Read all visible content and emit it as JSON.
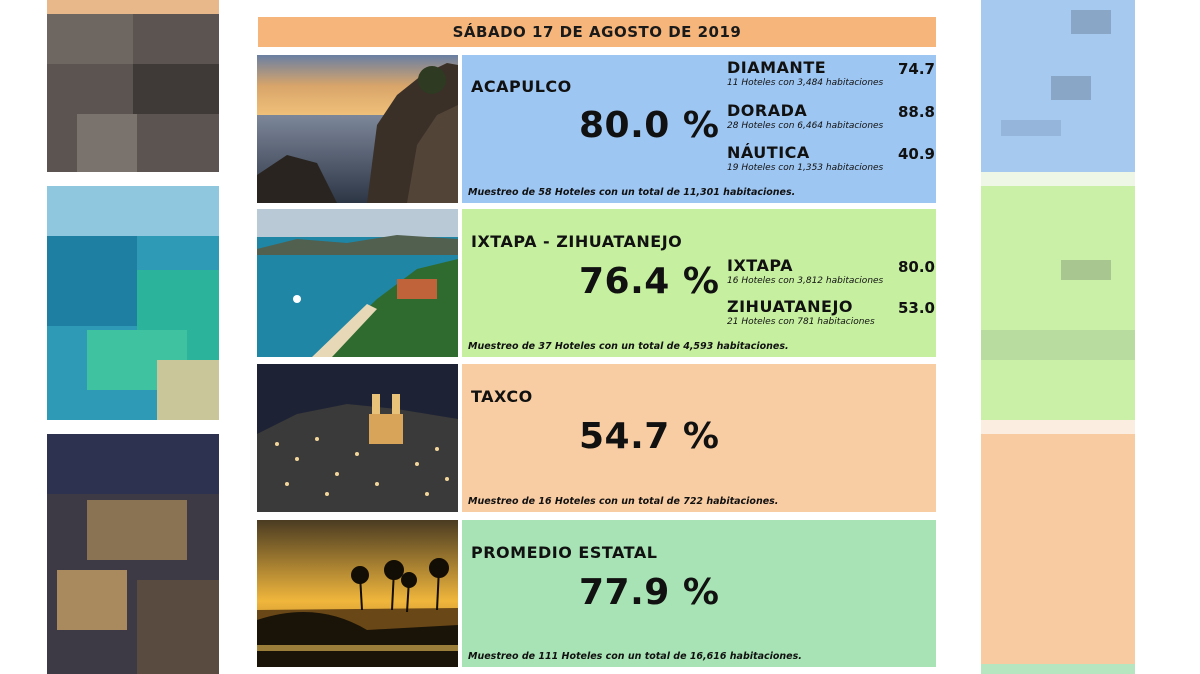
{
  "header": {
    "date": "SÁBADO 17 DE AGOSTO DE 2019"
  },
  "colors": {
    "header": "#f6b57a",
    "acapulco": "#9ec6f2",
    "ixtapa": "#c6f0a0",
    "taxco": "#f9cda3",
    "promedio": "#a7e3b4"
  },
  "acapulco": {
    "name": "ACAPULCO",
    "percent": "80.0 %",
    "sample": "Muestreo de 58 Hoteles con un total de 11,301 habitaciones.",
    "zones": [
      {
        "name": "DIAMANTE",
        "value": "74.7",
        "desc": "11 Hoteles con 3,484 habitaciones"
      },
      {
        "name": "DORADA",
        "value": "88.8",
        "desc": "28 Hoteles con 6,464 habitaciones"
      },
      {
        "name": "NÁUTICA",
        "value": "40.9",
        "desc": "19 Hoteles con 1,353 habitaciones"
      }
    ]
  },
  "ixtapa": {
    "name": "IXTAPA - ZIHUATANEJO",
    "percent": "76.4 %",
    "sample": "Muestreo de 37 Hoteles con un total de 4,593 habitaciones.",
    "zones": [
      {
        "name": "IXTAPA",
        "value": "80.0",
        "desc": "16 Hoteles con 3,812 habitaciones"
      },
      {
        "name": "ZIHUATANEJO",
        "value": "53.0",
        "desc": "21 Hoteles con 781 habitaciones"
      }
    ]
  },
  "taxco": {
    "name": "TAXCO",
    "percent": "54.7 %",
    "sample": "Muestreo de 16 Hoteles con un total de 722 habitaciones."
  },
  "promedio": {
    "name": "PROMEDIO ESTATAL",
    "percent": "77.9 %",
    "sample": "Muestreo de 111 Hoteles con un total de 16,616 habitaciones."
  }
}
